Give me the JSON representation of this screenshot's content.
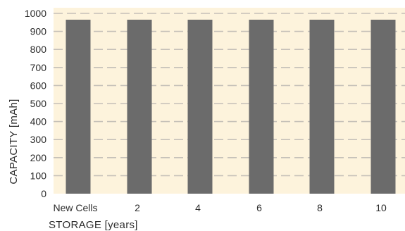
{
  "chart_data": {
    "type": "bar",
    "title": "",
    "xlabel": "STORAGE [years]",
    "ylabel": "CAPACITY [mAh]",
    "categories": [
      "New Cells",
      "2",
      "4",
      "6",
      "8",
      "10"
    ],
    "values": [
      965,
      965,
      965,
      965,
      965,
      965
    ],
    "ylim": [
      0,
      1000
    ],
    "yticks": [
      0,
      100,
      200,
      300,
      400,
      500,
      600,
      700,
      800,
      900,
      1000
    ],
    "grid": true,
    "legend": "none",
    "colors": {
      "plot_background": "#fdf3dc",
      "bar": "#6b6b6b",
      "grid": "#c5c0b8"
    }
  }
}
